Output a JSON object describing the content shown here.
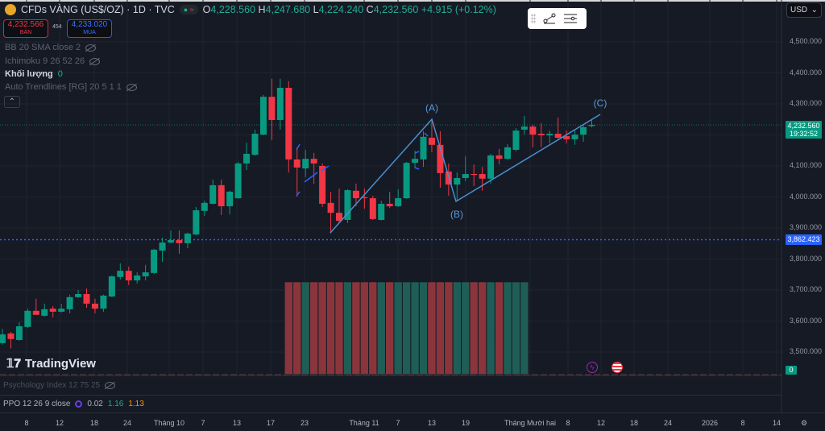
{
  "header": {
    "symbol": "CFDs VÀNG (US$/OZ) · 1D · TVC",
    "o_label": "O",
    "o": "4,228.560",
    "h_label": "H",
    "h": "4,247.680",
    "l_label": "L",
    "l": "4,224.240",
    "c_label": "C",
    "c": "4,232.560",
    "change": "+4.915 (+0.12%)"
  },
  "trade": {
    "sell_price": "4,232.566",
    "sell_label": "BÁN",
    "spread": "454",
    "buy_price": "4,233.020",
    "buy_label": "MUA"
  },
  "indicators": [
    {
      "label": "BB 20 SMA close 2"
    },
    {
      "label": "Ichimoku 9 26 52 26"
    },
    {
      "label": "Khối lượng",
      "value": "0"
    },
    {
      "label": "Auto Trendlines [RG] 20 5 1 1"
    }
  ],
  "currency": "USD",
  "yaxis": {
    "labels": [
      "4,500.000",
      "4,400.000",
      "4,300.000",
      "4,100.000",
      "4,000.000",
      "3,900.000",
      "3,800.000",
      "3,700.000",
      "3,600.000",
      "3,500.000"
    ],
    "values": [
      4500,
      4400,
      4300,
      4100,
      4000,
      3900,
      3800,
      3700,
      3600,
      3500
    ]
  },
  "current_price": {
    "price": "4,232.560",
    "countdown": "19:32:52",
    "value": 4232.56,
    "color": "#089981"
  },
  "level_line": {
    "price": "3,862.423",
    "value": 3862.423,
    "color": "#2962ff"
  },
  "volume_tag": "0",
  "waves": {
    "labels": [
      "(A)",
      "(B)",
      "(C)"
    ]
  },
  "logo": "TradingView",
  "panes": {
    "psychology": "Psychology Index 12 75 25",
    "ppo_label": "PPO 12 26 9 close",
    "ppo_v1": "0.02",
    "ppo_v2": "1.16",
    "ppo_v3": "1.13"
  },
  "xaxis": [
    "8",
    "12",
    "18",
    "24",
    "Tháng 10",
    "7",
    "13",
    "17",
    "23",
    "Tháng 11",
    "7",
    "13",
    "19",
    "Tháng Mười hai",
    "8",
    "12",
    "18",
    "24",
    "2026",
    "8",
    "14"
  ],
  "colors": {
    "up": "#089981",
    "down": "#f23645",
    "bg": "#161a25"
  },
  "candles": [
    [
      3529,
      3575,
      3524,
      3557
    ],
    [
      3560,
      3565,
      3511,
      3542
    ],
    [
      3539,
      3596,
      3537,
      3583
    ],
    [
      3581,
      3640,
      3578,
      3633
    ],
    [
      3633,
      3672,
      3620,
      3620
    ],
    [
      3617,
      3656,
      3614,
      3638
    ],
    [
      3640,
      3648,
      3612,
      3630
    ],
    [
      3630,
      3656,
      3627,
      3640
    ],
    [
      3638,
      3685,
      3625,
      3677
    ],
    [
      3677,
      3700,
      3674,
      3687
    ],
    [
      3687,
      3705,
      3643,
      3656
    ],
    [
      3656,
      3672,
      3625,
      3640
    ],
    [
      3640,
      3685,
      3630,
      3682
    ],
    [
      3679,
      3747,
      3677,
      3744
    ],
    [
      3742,
      3786,
      3734,
      3762
    ],
    [
      3762,
      3775,
      3716,
      3731
    ],
    [
      3731,
      3757,
      3721,
      3747
    ],
    [
      3744,
      3781,
      3731,
      3757
    ],
    [
      3755,
      3833,
      3752,
      3830
    ],
    [
      3827,
      3869,
      3791,
      3853
    ],
    [
      3853,
      3892,
      3850,
      3861
    ],
    [
      3861,
      3892,
      3817,
      3851
    ],
    [
      3851,
      3885,
      3835,
      3882
    ],
    [
      3879,
      3968,
      3877,
      3957
    ],
    [
      3955,
      3988,
      3939,
      3981
    ],
    [
      3978,
      4056,
      3976,
      4038
    ],
    [
      4038,
      4056,
      3942,
      3970
    ],
    [
      3970,
      4020,
      3944,
      4017
    ],
    [
      3996,
      4113,
      3994,
      4108
    ],
    [
      4108,
      4175,
      4087,
      4139
    ],
    [
      4136,
      4217,
      4133,
      4204
    ],
    [
      4201,
      4329,
      4199,
      4323
    ],
    [
      4323,
      4381,
      4183,
      4248
    ],
    [
      4248,
      4381,
      4217,
      4352
    ],
    [
      4352,
      4373,
      4079,
      4121
    ],
    [
      4121,
      4160,
      4001,
      4095
    ],
    [
      4092,
      4152,
      4064,
      4123
    ],
    [
      4123,
      4142,
      4043,
      4108
    ],
    [
      4100,
      4108,
      3968,
      3978
    ],
    [
      3981,
      4017,
      3882,
      3949
    ],
    [
      3949,
      4027,
      3916,
      3923
    ],
    [
      3926,
      4025,
      3916,
      4022
    ],
    [
      4020,
      4043,
      3970,
      3996
    ],
    [
      3999,
      4027,
      3962,
      3996
    ],
    [
      3996,
      4004,
      3926,
      3929
    ],
    [
      3926,
      3988,
      3924,
      3978
    ],
    [
      3978,
      4017,
      3965,
      3970
    ],
    [
      3970,
      4025,
      3968,
      3996
    ],
    [
      3996,
      4113,
      3994,
      4110
    ],
    [
      4110,
      4149,
      4092,
      4123
    ],
    [
      4121,
      4212,
      4097,
      4194
    ],
    [
      4191,
      4246,
      4144,
      4168
    ],
    [
      4168,
      4212,
      4030,
      4077
    ],
    [
      4082,
      4108,
      4004,
      4040
    ],
    [
      4040,
      4079,
      3986,
      4061
    ],
    [
      4061,
      4131,
      4051,
      4074
    ],
    [
      4074,
      4105,
      4035,
      4071
    ],
    [
      4074,
      4097,
      4020,
      4059
    ],
    [
      4059,
      4139,
      4043,
      4134
    ],
    [
      4134,
      4155,
      4105,
      4123
    ],
    [
      4123,
      4170,
      4120,
      4160
    ],
    [
      4152,
      4222,
      4147,
      4214
    ],
    [
      4217,
      4261,
      4201,
      4227
    ],
    [
      4227,
      4233,
      4160,
      4201
    ],
    [
      4204,
      4238,
      4160,
      4199
    ],
    [
      4199,
      4214,
      4173,
      4204
    ],
    [
      4204,
      4256,
      4186,
      4191
    ],
    [
      4196,
      4214,
      4173,
      4186
    ],
    [
      4186,
      4214,
      4168,
      4201
    ],
    [
      4201,
      4233,
      4178,
      4225
    ],
    [
      4228.56,
      4247.68,
      4224.24,
      4232.56
    ]
  ]
}
